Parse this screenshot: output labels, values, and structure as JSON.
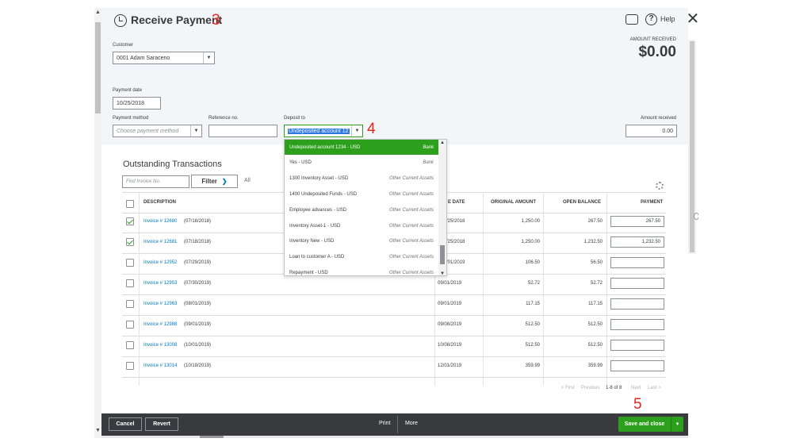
{
  "header": {
    "title": "Receive Payment",
    "help_label": "Help",
    "amount_received_label": "AMOUNT RECEIVED",
    "amount_received_value": "$0.00"
  },
  "annotations": [
    "3",
    "4",
    "5"
  ],
  "form": {
    "customer_label": "Customer",
    "customer_value": "0001 Adam Saraceno",
    "payment_date_label": "Payment date",
    "payment_date_value": "10/25/2018",
    "payment_method_label": "Payment method",
    "payment_method_placeholder": "Choose payment method",
    "reference_label": "Reference no.",
    "reference_value": "",
    "deposit_to_label": "Deposit to",
    "deposit_to_value": "Undeposited account 12",
    "amount_received_label": "Amount received",
    "amount_received_value": "0.00"
  },
  "deposit_dropdown": {
    "items": [
      {
        "name": "Undeposited account 1234 - USD",
        "type": "Bank",
        "selected": true
      },
      {
        "name": "Yes - USD",
        "type": "Bank"
      },
      {
        "name": "1300 Inventory Asset - USD",
        "type": "Other Current Assets"
      },
      {
        "name": "1400 Undeposited Funds - USD",
        "type": "Other Current Assets"
      },
      {
        "name": "Employee advances - USD",
        "type": "Other Current Assets"
      },
      {
        "name": "Inventory Asset-1 - USD",
        "type": "Other Current Assets"
      },
      {
        "name": "Inventory New - USD",
        "type": "Other Current Assets"
      },
      {
        "name": "Loan to customer A - USD",
        "type": "Other Current Assets"
      },
      {
        "name": "Repayment - USD",
        "type": "Other Current Assets"
      }
    ]
  },
  "outstanding": {
    "title": "Outstanding Transactions",
    "find_placeholder": "Find Invoice No.",
    "filter_label": "Filter",
    "all_label": "All",
    "columns": {
      "description": "DESCRIPTION",
      "due_date": "E DATE",
      "original_amount": "ORIGINAL AMOUNT",
      "open_balance": "OPEN BALANCE",
      "payment": "PAYMENT"
    },
    "rows": [
      {
        "invoice": "Invoice # 12680",
        "date": " (07/18/2018)",
        "due": "/25/2018",
        "original": "1,250.00",
        "open": "267.50",
        "payment": "267.50",
        "checked": true
      },
      {
        "invoice": "Invoice # 12681",
        "date": " (07/18/2018)",
        "due": "/25/2018",
        "original": "1,250.00",
        "open": "1,232.50",
        "payment": "1,232.50",
        "checked": true
      },
      {
        "invoice": "Invoice # 12952",
        "date": " (07/29/2019)",
        "due": "/01/2019",
        "original": "106.50",
        "open": "56.50",
        "payment": "",
        "checked": false
      },
      {
        "invoice": "Invoice # 12953",
        "date": " (07/30/2019)",
        "due": "09/01/2019",
        "original": "52.72",
        "open": "52.72",
        "payment": "",
        "checked": false
      },
      {
        "invoice": "Invoice # 12963",
        "date": " (08/01/2019)",
        "due": "09/01/2019",
        "original": "117.15",
        "open": "117.15",
        "payment": "",
        "checked": false
      },
      {
        "invoice": "Invoice # 12988",
        "date": " (09/01/2019)",
        "due": "09/08/2019",
        "original": "512.50",
        "open": "512.50",
        "payment": "",
        "checked": false
      },
      {
        "invoice": "Invoice # 13008",
        "date": " (10/01/2019)",
        "due": "10/08/2019",
        "original": "512.50",
        "open": "512.50",
        "payment": "",
        "checked": false
      },
      {
        "invoice": "Invoice # 13014",
        "date": " (10/19/2019)",
        "due": "12/01/2019",
        "original": "359.99",
        "open": "359.99",
        "payment": "",
        "checked": false
      }
    ],
    "pager": {
      "first": "< First",
      "previous": "Previous",
      "range": "1-8 of 8",
      "next": "Next",
      "last": "Last >"
    }
  },
  "footer": {
    "cancel": "Cancel",
    "revert": "Revert",
    "print": "Print",
    "more": "More",
    "save_and_close": "Save and close"
  },
  "colors": {
    "accent_green": "#2ca01c",
    "link_blue": "#0077c5",
    "footer_dark": "#393a3d",
    "annotation_red": "#e8251c"
  }
}
